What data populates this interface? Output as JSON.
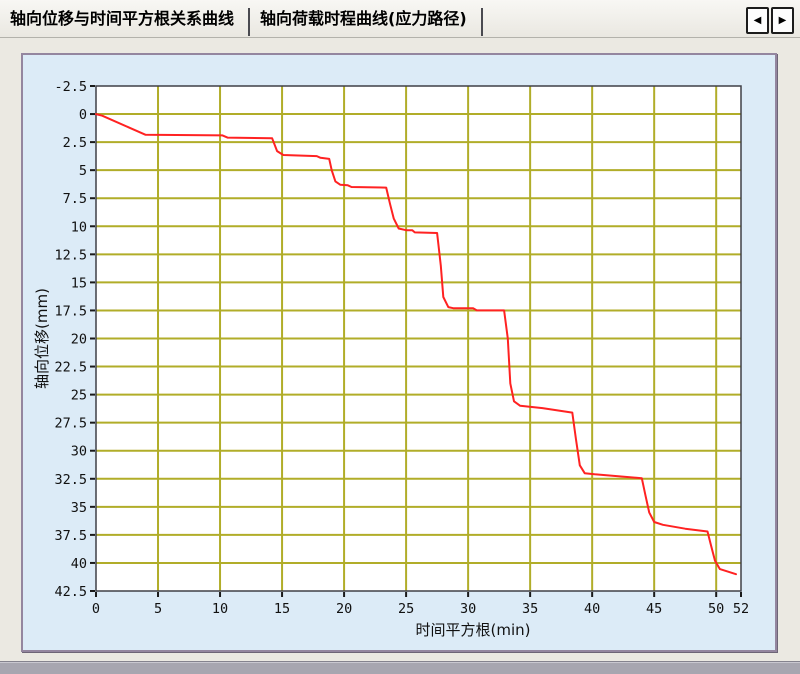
{
  "tabs": {
    "items": [
      {
        "label": "轴向位移与时间平方根关系曲线",
        "active": true
      },
      {
        "label": "轴向荷载时程曲线(应力路径)",
        "active": false
      }
    ]
  },
  "tab_scroll": {
    "left_icon": "◀",
    "right_icon": "▶"
  },
  "colors": {
    "grid": "#b1ad29",
    "curve": "#ff2222",
    "plot_border": "#3f3f46",
    "plot_bg": "#ffffff",
    "panel_bg": "#dcebf7",
    "tick": "#1a1a1a",
    "label": "#111111"
  },
  "chart_data": {
    "type": "line",
    "title": "",
    "xlabel": "时间平方根(min)",
    "ylabel": "轴向位移(mm)",
    "xlim": [
      0,
      52
    ],
    "ylim": [
      -2.5,
      42.5
    ],
    "y_inverted": true,
    "grid": true,
    "legend": "none",
    "x_ticks": [
      0,
      5,
      10,
      15,
      20,
      25,
      30,
      35,
      40,
      45,
      50,
      52
    ],
    "y_ticks": [
      -2.5,
      0,
      2.5,
      5,
      7.5,
      10,
      12.5,
      15,
      17.5,
      20,
      22.5,
      25,
      27.5,
      30,
      32.5,
      35,
      37.5,
      40,
      42.5
    ],
    "series": [
      {
        "color": "#ff2222",
        "points": [
          [
            0,
            0
          ],
          [
            0.5,
            0.15
          ],
          [
            4.0,
            1.85
          ],
          [
            10.2,
            1.9
          ],
          [
            10.6,
            2.1
          ],
          [
            14.2,
            2.15
          ],
          [
            14.6,
            3.3
          ],
          [
            15.1,
            3.65
          ],
          [
            17.8,
            3.75
          ],
          [
            18.1,
            3.9
          ],
          [
            18.8,
            4.0
          ],
          [
            19.0,
            5.0
          ],
          [
            19.3,
            6.0
          ],
          [
            19.7,
            6.3
          ],
          [
            20.3,
            6.35
          ],
          [
            20.6,
            6.5
          ],
          [
            23.4,
            6.55
          ],
          [
            23.7,
            8.0
          ],
          [
            24.0,
            9.3
          ],
          [
            24.4,
            10.2
          ],
          [
            25.0,
            10.35
          ],
          [
            25.5,
            10.35
          ],
          [
            25.7,
            10.55
          ],
          [
            27.5,
            10.6
          ],
          [
            27.8,
            13.5
          ],
          [
            28.0,
            16.3
          ],
          [
            28.4,
            17.2
          ],
          [
            28.8,
            17.3
          ],
          [
            30.4,
            17.3
          ],
          [
            30.7,
            17.5
          ],
          [
            32.9,
            17.5
          ],
          [
            33.2,
            20.0
          ],
          [
            33.4,
            24.0
          ],
          [
            33.7,
            25.6
          ],
          [
            34.2,
            26.0
          ],
          [
            36.0,
            26.2
          ],
          [
            38.4,
            26.6
          ],
          [
            38.7,
            29.0
          ],
          [
            39.0,
            31.3
          ],
          [
            39.4,
            32.0
          ],
          [
            40.2,
            32.1
          ],
          [
            44.0,
            32.45
          ],
          [
            44.3,
            34.0
          ],
          [
            44.6,
            35.5
          ],
          [
            45.0,
            36.35
          ],
          [
            45.7,
            36.6
          ],
          [
            47.5,
            36.95
          ],
          [
            49.3,
            37.2
          ],
          [
            49.6,
            38.5
          ],
          [
            49.9,
            39.8
          ],
          [
            50.3,
            40.55
          ],
          [
            50.9,
            40.75
          ],
          [
            51.6,
            41.0
          ]
        ]
      }
    ]
  }
}
